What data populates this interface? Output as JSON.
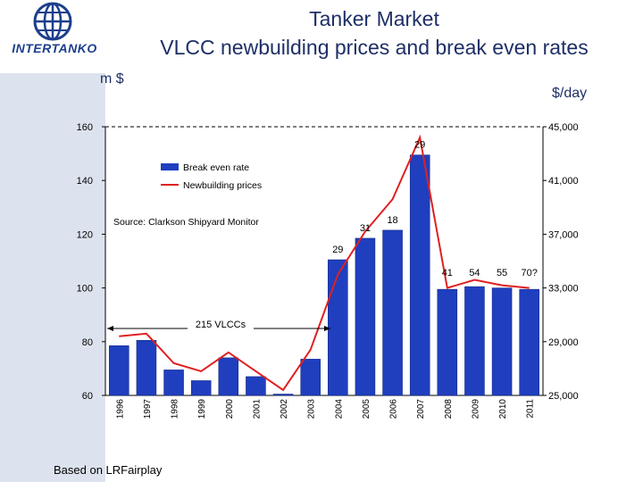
{
  "header": {
    "title_line1": "Tanker Market",
    "title_line2": "VLCC newbuilding prices and break even rates",
    "logo_text": "INTERTANKO"
  },
  "units": {
    "left": "m $",
    "right": "$/day"
  },
  "footer": {
    "note": "Based on LRFairplay"
  },
  "colors": {
    "bar": "#1f3fbf",
    "line": "#e02020",
    "title": "#1e2f66",
    "side_band": "#dde3ee",
    "logo": "#1d3f8c"
  },
  "chart_data": {
    "type": "bar",
    "categories": [
      "1996",
      "1997",
      "1998",
      "1999",
      "2000",
      "2001",
      "2002",
      "2003",
      "2004",
      "2005",
      "2006",
      "2007",
      "2008",
      "2009",
      "2010",
      "2011"
    ],
    "series": [
      {
        "name": "Break even rate",
        "type": "bar",
        "axis": "right",
        "values": [
          28700,
          29100,
          26900,
          26100,
          27800,
          26400,
          25100,
          27700,
          35100,
          36700,
          37300,
          42900,
          32900,
          33100,
          33000,
          32900
        ]
      },
      {
        "name": "Newbuilding prices",
        "type": "line",
        "axis": "left",
        "values": [
          82,
          83,
          72,
          69,
          76,
          69,
          62,
          77,
          105,
          121,
          133,
          156,
          100,
          103,
          101,
          100
        ]
      }
    ],
    "ylim_left": [
      60,
      160
    ],
    "yticks_left": [
      "60",
      "80",
      "100",
      "120",
      "140",
      "160"
    ],
    "ylim_right": [
      25000,
      45000
    ],
    "yticks_right": [
      "25,000",
      "29,000",
      "33,000",
      "37,000",
      "41,000",
      "45,000"
    ],
    "dashed_reference_line": 160,
    "legend": [
      "Break even rate",
      "Newbuilding prices"
    ],
    "legend_position": "top-left",
    "annotations": {
      "source": "Source: Clarkson Shipyard Monitor",
      "range_label": "215 VLCCs",
      "bar_labels": [
        {
          "category": "2004",
          "label": "29"
        },
        {
          "category": "2005",
          "label": "31"
        },
        {
          "category": "2006",
          "label": "18"
        },
        {
          "category": "2007",
          "label": "29"
        },
        {
          "category": "2008",
          "label": "41"
        },
        {
          "category": "2009",
          "label": "54"
        },
        {
          "category": "2010",
          "label": "55"
        },
        {
          "category": "2011",
          "label": "70?"
        }
      ]
    },
    "grid": false
  }
}
